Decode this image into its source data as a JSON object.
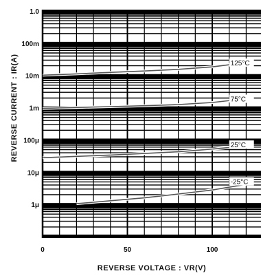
{
  "chart_data": {
    "type": "line",
    "title": "",
    "xlabel": "REVERSE VOLTAGE : VR(V)",
    "ylabel": "REVERSE CURRENT : IR(A)",
    "xlim": [
      0,
      120
    ],
    "ylim_log10": [
      -7,
      0
    ],
    "y_scale": "log",
    "grid": true,
    "x_ticks": [
      {
        "value": 0,
        "label": "0"
      },
      {
        "value": 50,
        "label": "50"
      },
      {
        "value": 100,
        "label": "100"
      }
    ],
    "y_ticks": [
      {
        "exp": 0,
        "label": "1.0"
      },
      {
        "exp": -1,
        "label": "100m"
      },
      {
        "exp": -2,
        "label": "10m"
      },
      {
        "exp": -3,
        "label": "1m"
      },
      {
        "exp": -4,
        "label": "100μ"
      },
      {
        "exp": -5,
        "label": "10μ"
      },
      {
        "exp": -6,
        "label": "1μ"
      }
    ],
    "series": [
      {
        "name": "125°C",
        "label_at": [
          110,
          0.025
        ],
        "points": [
          [
            0,
            0.0102
          ],
          [
            20,
            0.0112
          ],
          [
            40,
            0.0125
          ],
          [
            60,
            0.0138
          ],
          [
            80,
            0.0155
          ],
          [
            100,
            0.0185
          ],
          [
            120,
            0.025
          ]
        ]
      },
      {
        "name": "75°C",
        "label_at": [
          110,
          0.0019
        ],
        "points": [
          [
            0,
            0.00095
          ],
          [
            20,
            0.00102
          ],
          [
            40,
            0.00108
          ],
          [
            60,
            0.00115
          ],
          [
            80,
            0.00125
          ],
          [
            100,
            0.00145
          ],
          [
            120,
            0.0019
          ]
        ]
      },
      {
        "name": "25°C",
        "label_at": [
          110,
          7.2e-05
        ],
        "points": [
          [
            0,
            2.8e-05
          ],
          [
            20,
            3.1e-05
          ],
          [
            40,
            3.4e-05
          ],
          [
            60,
            3.8e-05
          ],
          [
            80,
            4.3e-05
          ],
          [
            100,
            5.2e-05
          ],
          [
            120,
            6.5e-05
          ]
        ]
      },
      {
        "name": "-25°C",
        "label_at": [
          110,
          5.2e-06
        ],
        "points": [
          [
            20,
            1.05e-06
          ],
          [
            40,
            1.3e-06
          ],
          [
            60,
            1.6e-06
          ],
          [
            80,
            2.1e-06
          ],
          [
            100,
            2.8e-06
          ],
          [
            120,
            4.2e-06
          ]
        ]
      }
    ]
  }
}
